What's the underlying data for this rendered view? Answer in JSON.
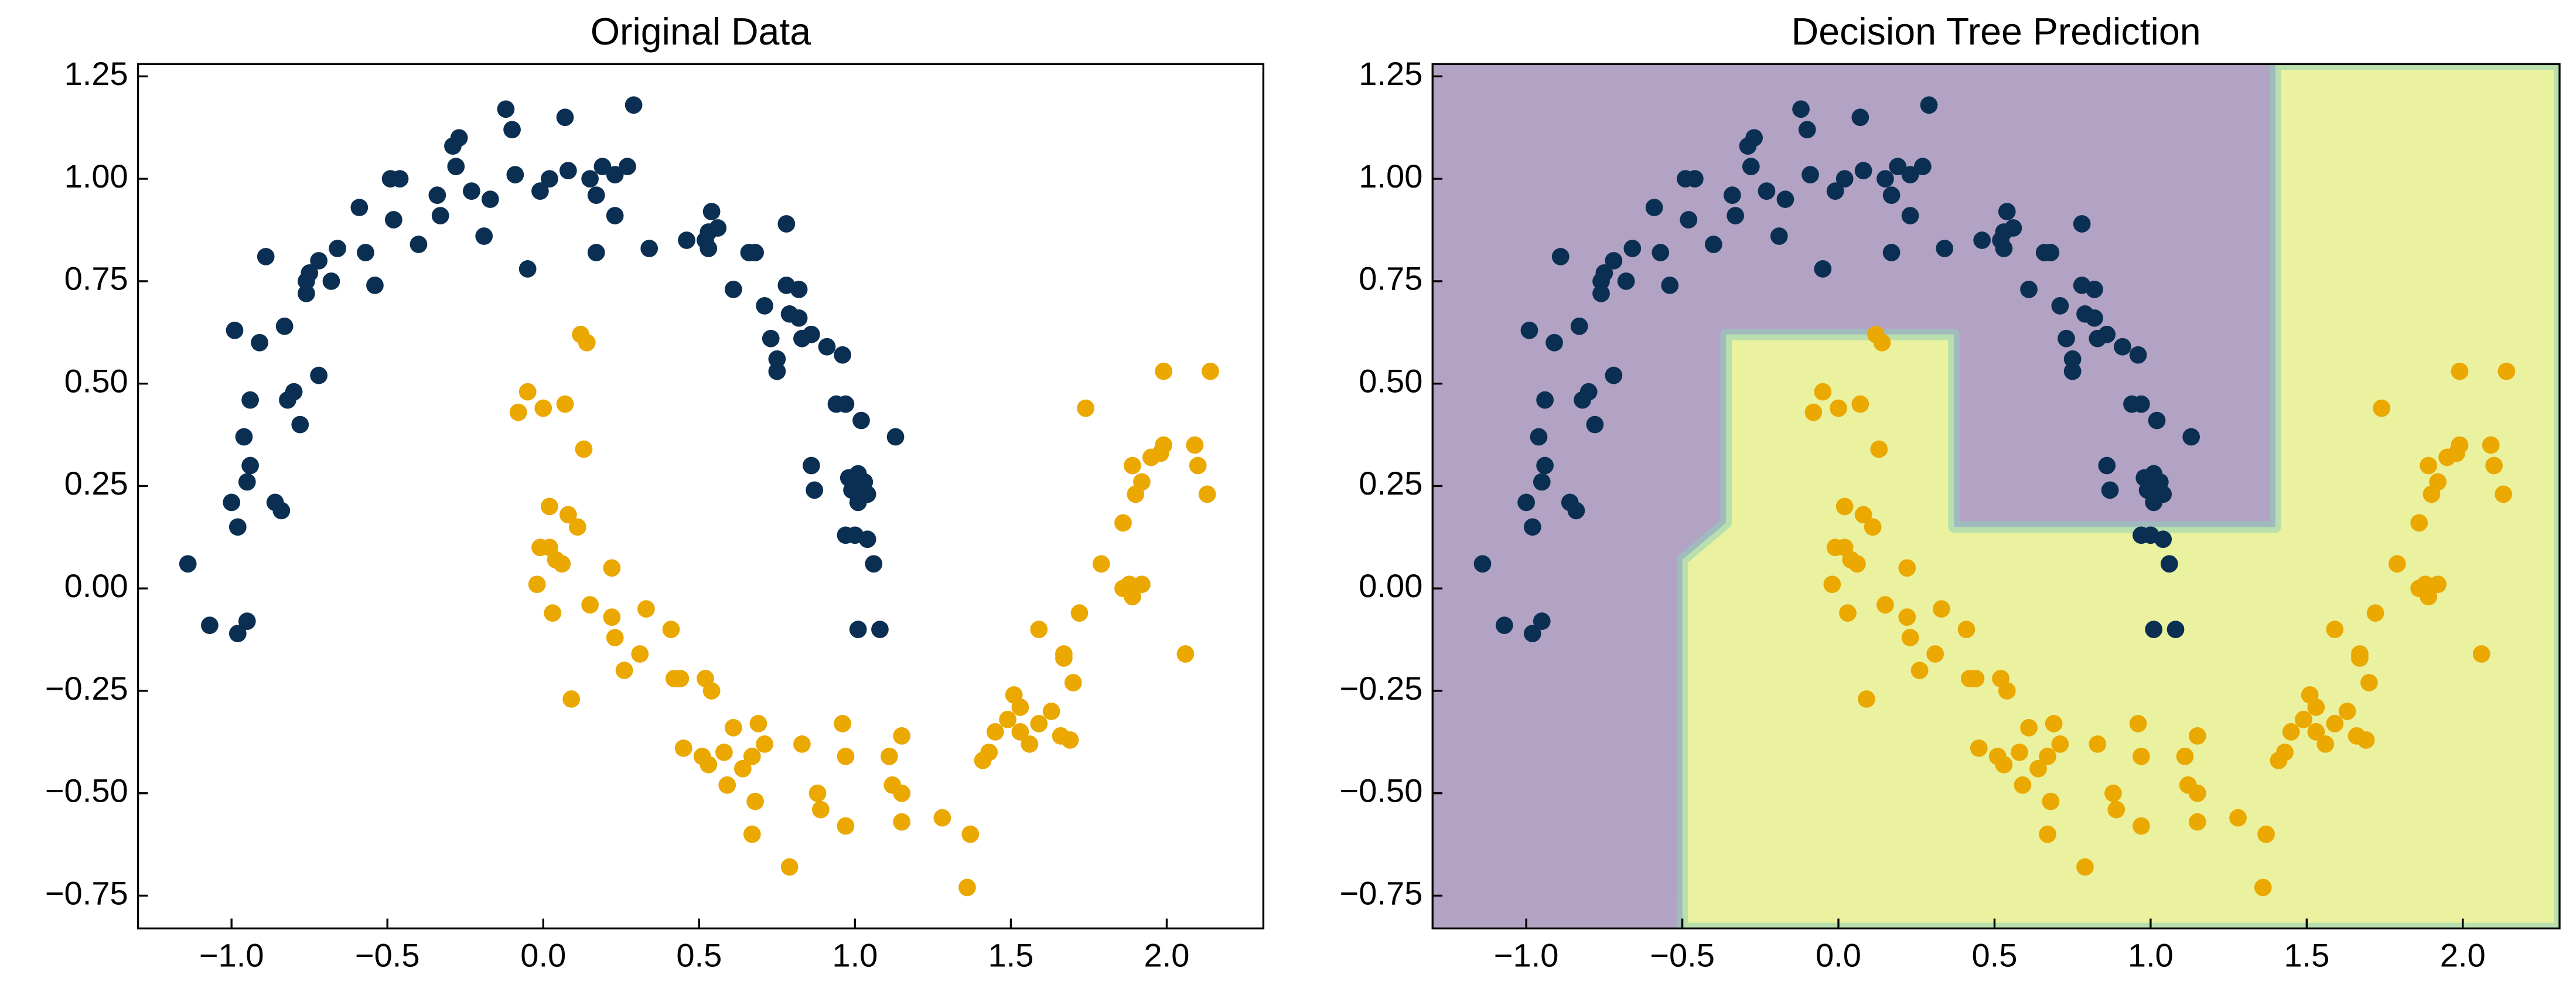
{
  "chart_data": [
    {
      "type": "scatter",
      "title": "Original Data",
      "xlim": [
        -1.3,
        2.31
      ],
      "ylim": [
        -0.83,
        1.28
      ],
      "xticks": [
        {
          "value": -1,
          "label": "−1.0"
        },
        {
          "value": -0.5,
          "label": "−0.5"
        },
        {
          "value": 0,
          "label": "0.0"
        },
        0.5,
        {
          "value": 1,
          "label": "1.0"
        },
        1.5,
        {
          "value": 2,
          "label": "2.0"
        }
      ],
      "yticks": [
        {
          "value": -0.75,
          "label": "−0.75"
        },
        {
          "value": -0.5,
          "label": "−0.50"
        },
        {
          "value": -0.25,
          "label": "−0.25"
        },
        {
          "value": 0,
          "label": "0.00"
        },
        0.25,
        {
          "value": 0.5,
          "label": "0.50"
        },
        0.75,
        {
          "value": 1,
          "label": "1.00"
        },
        1.25
      ],
      "series": [
        {
          "color": "#0b2f52",
          "x": [
            -1.14,
            -1.07,
            -0.98,
            -0.95,
            -0.98,
            -1.0,
            -0.95,
            -0.94,
            -0.96,
            -0.94,
            -0.99,
            -0.91,
            -0.89,
            -0.83,
            -0.86,
            -0.84,
            -0.82,
            -0.8,
            -0.78,
            -0.72,
            -0.76,
            -0.75,
            -0.72,
            -0.76,
            -0.68,
            -0.66,
            -0.59,
            -0.57,
            -0.54,
            -0.49,
            -0.46,
            -0.48,
            -0.4,
            -0.34,
            -0.33,
            -0.28,
            -0.27,
            -0.29,
            -0.23,
            -0.19,
            -0.17,
            -0.12,
            -0.1,
            -0.05,
            -0.09,
            -0.01,
            0.02,
            0.07,
            0.08,
            0.15,
            0.17,
            0.19,
            0.23,
            0.23,
            0.27,
            0.29,
            0.17,
            0.34,
            0.46,
            0.53,
            0.53,
            0.54,
            0.56,
            0.52,
            0.61,
            0.68,
            0.66,
            0.78,
            0.71,
            0.73,
            0.75,
            0.75,
            0.78,
            0.82,
            0.79,
            0.82,
            0.83,
            0.86,
            0.91,
            0.96,
            0.94,
            0.97,
            0.86,
            0.87,
            0.98,
            1.01,
            1.02,
            0.99,
            1.01,
            1.04,
            1.03,
            0.97,
            1.0,
            1.04,
            1.06,
            1.13,
            1.01,
            1.08
          ],
          "values": [
            0.06,
            -0.09,
            -0.11,
            -0.08,
            0.15,
            0.21,
            0.26,
            0.3,
            0.37,
            0.46,
            0.63,
            0.6,
            0.81,
            0.64,
            0.21,
            0.19,
            0.46,
            0.48,
            0.4,
            0.52,
            0.75,
            0.77,
            0.8,
            0.72,
            0.75,
            0.83,
            0.93,
            0.82,
            0.74,
            1.0,
            1.0,
            0.9,
            0.84,
            0.96,
            0.91,
            1.03,
            1.1,
            1.08,
            0.97,
            0.86,
            0.95,
            1.17,
            1.12,
            0.78,
            1.01,
            0.97,
            1.0,
            1.15,
            1.02,
            1.0,
            0.96,
            1.03,
            0.91,
            1.01,
            1.03,
            1.18,
            0.82,
            0.83,
            0.85,
            0.87,
            0.83,
            0.92,
            0.88,
            0.85,
            0.73,
            0.82,
            0.82,
            0.89,
            0.69,
            0.61,
            0.56,
            0.53,
            0.74,
            0.73,
            0.67,
            0.66,
            0.61,
            0.62,
            0.59,
            0.57,
            0.45,
            0.45,
            0.3,
            0.24,
            0.27,
            0.28,
            0.41,
            0.24,
            0.21,
            0.23,
            0.26,
            0.13,
            0.13,
            0.12,
            0.06,
            0.37,
            -0.1,
            -0.1
          ]
        },
        {
          "color": "#eaa800",
          "x": [
            -0.08,
            -0.05,
            0.0,
            0.07,
            0.12,
            0.14,
            0.13,
            0.02,
            0.08,
            0.11,
            -0.01,
            0.02,
            0.04,
            0.06,
            -0.02,
            0.03,
            0.09,
            0.22,
            0.15,
            0.22,
            0.23,
            0.26,
            0.31,
            0.33,
            0.41,
            0.42,
            0.44,
            0.52,
            0.54,
            0.45,
            0.51,
            0.53,
            0.58,
            0.59,
            0.64,
            0.68,
            0.67,
            0.69,
            0.71,
            0.67,
            0.61,
            0.79,
            0.83,
            0.88,
            0.89,
            0.96,
            0.97,
            0.97,
            1.11,
            1.15,
            1.12,
            1.15,
            1.15,
            1.28,
            1.37,
            1.36,
            1.41,
            1.43,
            1.45,
            1.49,
            1.53,
            1.51,
            1.53,
            1.56,
            1.59,
            1.63,
            1.59,
            1.67,
            1.67,
            1.66,
            1.69,
            1.7,
            1.72,
            1.74,
            1.79,
            1.86,
            1.88,
            1.92,
            1.89,
            1.86,
            1.89,
            1.95,
            1.98,
            1.99,
            1.9,
            1.92,
            1.99,
            2.06,
            2.09,
            2.1,
            2.13,
            2.14
          ],
          "values": [
            0.43,
            0.48,
            0.44,
            0.45,
            0.62,
            0.6,
            0.34,
            0.2,
            0.18,
            0.15,
            0.1,
            0.1,
            0.07,
            0.06,
            0.01,
            -0.06,
            -0.27,
            0.05,
            -0.04,
            -0.07,
            -0.12,
            -0.2,
            -0.16,
            -0.05,
            -0.1,
            -0.22,
            -0.22,
            -0.22,
            -0.25,
            -0.39,
            -0.41,
            -0.43,
            -0.4,
            -0.48,
            -0.44,
            -0.52,
            -0.6,
            -0.33,
            -0.38,
            -0.41,
            -0.34,
            -0.68,
            -0.38,
            -0.5,
            -0.54,
            -0.33,
            -0.41,
            -0.58,
            -0.41,
            -0.36,
            -0.48,
            -0.5,
            -0.57,
            -0.56,
            -0.6,
            -0.73,
            -0.42,
            -0.4,
            -0.35,
            -0.32,
            -0.29,
            -0.26,
            -0.35,
            -0.38,
            -0.33,
            -0.3,
            -0.1,
            -0.16,
            -0.17,
            -0.36,
            -0.37,
            -0.23,
            -0.06,
            0.44,
            0.06,
            0.0,
            0.01,
            0.01,
            -0.02,
            0.16,
            0.3,
            0.32,
            0.33,
            0.35,
            0.23,
            0.26,
            0.53,
            -0.16,
            0.35,
            0.3,
            0.23,
            0.53
          ]
        }
      ]
    },
    {
      "type": "scatter",
      "title": "Decision Tree Prediction",
      "xlim": [
        -1.3,
        2.31
      ],
      "ylim": [
        -0.83,
        1.28
      ],
      "xticks": [
        {
          "value": -1,
          "label": "−1.0"
        },
        {
          "value": -0.5,
          "label": "−0.5"
        },
        {
          "value": 0,
          "label": "0.0"
        },
        0.5,
        {
          "value": 1,
          "label": "1.0"
        },
        1.5,
        {
          "value": 2,
          "label": "2.0"
        }
      ],
      "yticks": [
        {
          "value": -0.75,
          "label": "−0.75"
        },
        {
          "value": -0.5,
          "label": "−0.50"
        },
        {
          "value": -0.25,
          "label": "−0.25"
        },
        {
          "value": 0,
          "label": "0.00"
        },
        0.25,
        {
          "value": 0.5,
          "label": "0.50"
        },
        0.75,
        {
          "value": 1,
          "label": "1.00"
        },
        1.25
      ],
      "background_color": "#b2a3c5",
      "regions": [
        {
          "color": "#ebf29f",
          "x": [
            -0.5,
            -0.5,
            -0.36,
            -0.36,
            0.37,
            0.37,
            1.4,
            1.4,
            2.31,
            2.31
          ],
          "y": [
            -0.83,
            0.07,
            0.16,
            0.62,
            0.62,
            0.15,
            0.15,
            1.28,
            1.28,
            -0.83
          ]
        }
      ],
      "series": [
        {
          "color": "#0b2f52",
          "x": [
            -1.14,
            -1.07,
            -0.98,
            -0.95,
            -0.98,
            -1.0,
            -0.95,
            -0.94,
            -0.96,
            -0.94,
            -0.99,
            -0.91,
            -0.89,
            -0.83,
            -0.86,
            -0.84,
            -0.82,
            -0.8,
            -0.78,
            -0.72,
            -0.76,
            -0.75,
            -0.72,
            -0.76,
            -0.68,
            -0.66,
            -0.59,
            -0.57,
            -0.54,
            -0.49,
            -0.46,
            -0.48,
            -0.4,
            -0.34,
            -0.33,
            -0.28,
            -0.27,
            -0.29,
            -0.23,
            -0.19,
            -0.17,
            -0.12,
            -0.1,
            -0.05,
            -0.09,
            -0.01,
            0.02,
            0.07,
            0.08,
            0.15,
            0.17,
            0.19,
            0.23,
            0.23,
            0.27,
            0.29,
            0.17,
            0.34,
            0.46,
            0.53,
            0.53,
            0.54,
            0.56,
            0.52,
            0.61,
            0.68,
            0.66,
            0.78,
            0.71,
            0.73,
            0.75,
            0.75,
            0.78,
            0.82,
            0.79,
            0.82,
            0.83,
            0.86,
            0.91,
            0.96,
            0.94,
            0.97,
            0.86,
            0.87,
            0.98,
            1.01,
            1.02,
            0.99,
            1.01,
            1.04,
            1.03,
            0.97,
            1.0,
            1.04,
            1.06,
            1.13,
            1.01,
            1.08
          ],
          "values": [
            0.06,
            -0.09,
            -0.11,
            -0.08,
            0.15,
            0.21,
            0.26,
            0.3,
            0.37,
            0.46,
            0.63,
            0.6,
            0.81,
            0.64,
            0.21,
            0.19,
            0.46,
            0.48,
            0.4,
            0.52,
            0.75,
            0.77,
            0.8,
            0.72,
            0.75,
            0.83,
            0.93,
            0.82,
            0.74,
            1.0,
            1.0,
            0.9,
            0.84,
            0.96,
            0.91,
            1.03,
            1.1,
            1.08,
            0.97,
            0.86,
            0.95,
            1.17,
            1.12,
            0.78,
            1.01,
            0.97,
            1.0,
            1.15,
            1.02,
            1.0,
            0.96,
            1.03,
            0.91,
            1.01,
            1.03,
            1.18,
            0.82,
            0.83,
            0.85,
            0.87,
            0.83,
            0.92,
            0.88,
            0.85,
            0.73,
            0.82,
            0.82,
            0.89,
            0.69,
            0.61,
            0.56,
            0.53,
            0.74,
            0.73,
            0.67,
            0.66,
            0.61,
            0.62,
            0.59,
            0.57,
            0.45,
            0.45,
            0.3,
            0.24,
            0.27,
            0.28,
            0.41,
            0.24,
            0.21,
            0.23,
            0.26,
            0.13,
            0.13,
            0.12,
            0.06,
            0.37,
            -0.1,
            -0.1
          ]
        },
        {
          "color": "#eaa800",
          "x": [
            -0.08,
            -0.05,
            0.0,
            0.07,
            0.12,
            0.14,
            0.13,
            0.02,
            0.08,
            0.11,
            -0.01,
            0.02,
            0.04,
            0.06,
            -0.02,
            0.03,
            0.09,
            0.22,
            0.15,
            0.22,
            0.23,
            0.26,
            0.31,
            0.33,
            0.41,
            0.42,
            0.44,
            0.52,
            0.54,
            0.45,
            0.51,
            0.53,
            0.58,
            0.59,
            0.64,
            0.68,
            0.67,
            0.69,
            0.71,
            0.67,
            0.61,
            0.79,
            0.83,
            0.88,
            0.89,
            0.96,
            0.97,
            0.97,
            1.11,
            1.15,
            1.12,
            1.15,
            1.15,
            1.28,
            1.37,
            1.36,
            1.41,
            1.43,
            1.45,
            1.49,
            1.53,
            1.51,
            1.53,
            1.56,
            1.59,
            1.63,
            1.59,
            1.67,
            1.67,
            1.66,
            1.69,
            1.7,
            1.72,
            1.74,
            1.79,
            1.86,
            1.88,
            1.92,
            1.89,
            1.86,
            1.89,
            1.95,
            1.98,
            1.99,
            1.9,
            1.92,
            1.99,
            2.06,
            2.09,
            2.1,
            2.13,
            2.14
          ],
          "values": [
            0.43,
            0.48,
            0.44,
            0.45,
            0.62,
            0.6,
            0.34,
            0.2,
            0.18,
            0.15,
            0.1,
            0.1,
            0.07,
            0.06,
            0.01,
            -0.06,
            -0.27,
            0.05,
            -0.04,
            -0.07,
            -0.12,
            -0.2,
            -0.16,
            -0.05,
            -0.1,
            -0.22,
            -0.22,
            -0.22,
            -0.25,
            -0.39,
            -0.41,
            -0.43,
            -0.4,
            -0.48,
            -0.44,
            -0.52,
            -0.6,
            -0.33,
            -0.38,
            -0.41,
            -0.34,
            -0.68,
            -0.38,
            -0.5,
            -0.54,
            -0.33,
            -0.41,
            -0.58,
            -0.41,
            -0.36,
            -0.48,
            -0.5,
            -0.57,
            -0.56,
            -0.6,
            -0.73,
            -0.42,
            -0.4,
            -0.35,
            -0.32,
            -0.29,
            -0.26,
            -0.35,
            -0.38,
            -0.33,
            -0.3,
            -0.1,
            -0.16,
            -0.17,
            -0.36,
            -0.37,
            -0.23,
            -0.06,
            0.44,
            0.06,
            0.0,
            0.01,
            0.01,
            -0.02,
            0.16,
            0.3,
            0.32,
            0.33,
            0.35,
            0.23,
            0.26,
            0.53,
            -0.16,
            0.35,
            0.3,
            0.23,
            0.53
          ]
        }
      ]
    }
  ]
}
